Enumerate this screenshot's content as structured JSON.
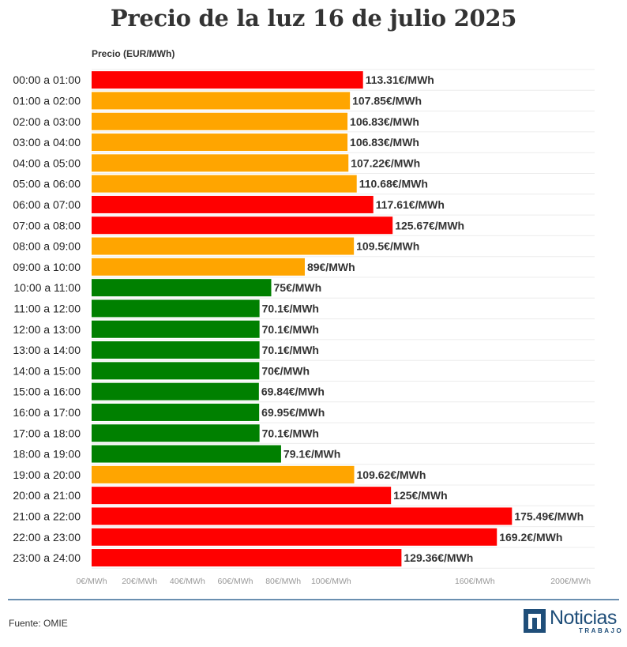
{
  "chart_data": {
    "type": "bar",
    "orientation": "horizontal",
    "title": "Precio de la luz 16 de julio 2025",
    "axis_title": "Precio (EUR/MWh)",
    "unit_suffix": "€/MWh",
    "xlim": [
      0,
      210
    ],
    "ticks": [
      {
        "value": 0,
        "label": "0€/MWh"
      },
      {
        "value": 20,
        "label": "20€/MWh"
      },
      {
        "value": 40,
        "label": "40€/MWh"
      },
      {
        "value": 60,
        "label": "60€/MWh"
      },
      {
        "value": 80,
        "label": "80€/MWh"
      },
      {
        "value": 100,
        "label": "100€/MWh"
      },
      {
        "value": 160,
        "label": "160€/MWh"
      },
      {
        "value": 200,
        "label": "200€/MWh"
      }
    ],
    "categories": [
      "00:00 a 01:00",
      "01:00 a 02:00",
      "02:00 a 03:00",
      "03:00 a 04:00",
      "04:00 a 05:00",
      "05:00 a 06:00",
      "06:00 a 07:00",
      "07:00 a 08:00",
      "08:00 a 09:00",
      "09:00 a 10:00",
      "10:00 a 11:00",
      "11:00 a 12:00",
      "12:00 a 13:00",
      "13:00 a 14:00",
      "14:00 a 15:00",
      "15:00 a 16:00",
      "16:00 a 17:00",
      "17:00 a 18:00",
      "18:00 a 19:00",
      "19:00 a 20:00",
      "20:00 a 21:00",
      "21:00 a 22:00",
      "22:00 a 23:00",
      "23:00 a 24:00"
    ],
    "values": [
      113.31,
      107.85,
      106.83,
      106.83,
      107.22,
      110.68,
      117.61,
      125.67,
      109.5,
      89,
      75,
      70.1,
      70.1,
      70.1,
      70,
      69.84,
      69.95,
      70.1,
      79.1,
      109.62,
      125,
      175.49,
      169.2,
      129.36
    ],
    "value_labels": [
      "113.31€/MWh",
      "107.85€/MWh",
      "106.83€/MWh",
      "106.83€/MWh",
      "107.22€/MWh",
      "110.68€/MWh",
      "117.61€/MWh",
      "125.67€/MWh",
      "109.5€/MWh",
      "89€/MWh",
      "75€/MWh",
      "70.1€/MWh",
      "70.1€/MWh",
      "70.1€/MWh",
      "70€/MWh",
      "69.84€/MWh",
      "69.95€/MWh",
      "70.1€/MWh",
      "79.1€/MWh",
      "109.62€/MWh",
      "125€/MWh",
      "175.49€/MWh",
      "169.2€/MWh",
      "129.36€/MWh"
    ],
    "levels": [
      "high",
      "mid",
      "mid",
      "mid",
      "mid",
      "mid",
      "high",
      "high",
      "mid",
      "mid",
      "low",
      "low",
      "low",
      "low",
      "low",
      "low",
      "low",
      "low",
      "low",
      "mid",
      "high",
      "high",
      "high",
      "high"
    ],
    "level_colors": {
      "high": "#ff0000",
      "mid": "#ffa500",
      "low": "#008000"
    }
  },
  "footer": {
    "source": "Fuente: OMIE",
    "logo_word": "Noticias",
    "logo_sub": "TRABAJO"
  },
  "colors": {
    "rule": "#6a8fb0",
    "logo": "#1f4e79"
  }
}
